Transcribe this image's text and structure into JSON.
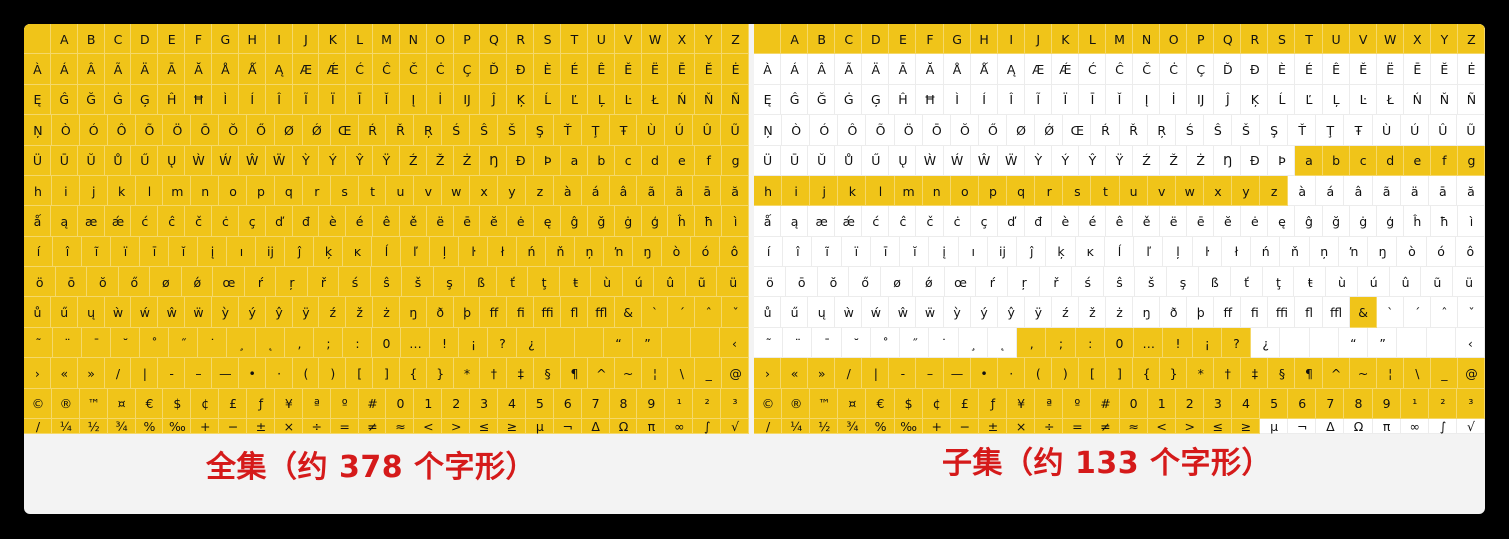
{
  "glyph_rows": [
    [
      "",
      "A",
      "B",
      "C",
      "D",
      "E",
      "F",
      "G",
      "H",
      "I",
      "J",
      "K",
      "L",
      "M",
      "N",
      "O",
      "P",
      "Q",
      "R",
      "S",
      "T",
      "U",
      "V",
      "W",
      "X",
      "Y",
      "Z"
    ],
    [
      "À",
      "Á",
      "Â",
      "Ã",
      "Ä",
      "Ā",
      "Ă",
      "Å",
      "Ǻ",
      "Ą",
      "Æ",
      "Ǽ",
      "Ć",
      "Ĉ",
      "Č",
      "Ċ",
      "Ç",
      "Ď",
      "Đ",
      "È",
      "É",
      "Ê",
      "Ě",
      "Ë",
      "Ē",
      "Ĕ",
      "Ė"
    ],
    [
      "Ę",
      "Ĝ",
      "Ğ",
      "Ġ",
      "Ģ",
      "Ĥ",
      "Ħ",
      "Ì",
      "Í",
      "Î",
      "Ĩ",
      "Ï",
      "Ī",
      "Ĭ",
      "Į",
      "İ",
      "Ĳ",
      "Ĵ",
      "Ķ",
      "Ĺ",
      "Ľ",
      "Ļ",
      "Ŀ",
      "Ł",
      "Ń",
      "Ň",
      "Ñ"
    ],
    [
      "Ņ",
      "Ò",
      "Ó",
      "Ô",
      "Õ",
      "Ö",
      "Ō",
      "Ŏ",
      "Ő",
      "Ø",
      "Ǿ",
      "Œ",
      "Ŕ",
      "Ř",
      "Ŗ",
      "Ś",
      "Ŝ",
      "Š",
      "Ş",
      "Ť",
      "Ţ",
      "Ŧ",
      "Ù",
      "Ú",
      "Û",
      "Ũ"
    ],
    [
      "Ü",
      "Ū",
      "Ŭ",
      "Ů",
      "Ű",
      "Ų",
      "Ẁ",
      "Ẃ",
      "Ŵ",
      "Ẅ",
      "Ỳ",
      "Ý",
      "Ŷ",
      "Ÿ",
      "Ź",
      "Ž",
      "Ż",
      "Ŋ",
      "Ð",
      "Þ",
      "a",
      "b",
      "c",
      "d",
      "e",
      "f",
      "g"
    ],
    [
      "h",
      "i",
      "j",
      "k",
      "l",
      "m",
      "n",
      "o",
      "p",
      "q",
      "r",
      "s",
      "t",
      "u",
      "v",
      "w",
      "x",
      "y",
      "z",
      "à",
      "á",
      "â",
      "ã",
      "ä",
      "ā",
      "ă"
    ],
    [
      "ǻ",
      "ą",
      "æ",
      "ǽ",
      "ć",
      "ĉ",
      "č",
      "ċ",
      "ç",
      "ď",
      "đ",
      "è",
      "é",
      "ê",
      "ě",
      "ë",
      "ē",
      "ĕ",
      "ė",
      "ę",
      "ĝ",
      "ğ",
      "ġ",
      "ģ",
      "ĥ",
      "ħ",
      "ì"
    ],
    [
      "í",
      "î",
      "ĩ",
      "ï",
      "ī",
      "ĭ",
      "į",
      "ı",
      "ĳ",
      "ĵ",
      "ķ",
      "ĸ",
      "ĺ",
      "ľ",
      "ļ",
      "ŀ",
      "ł",
      "ń",
      "ň",
      "ņ",
      "ŉ",
      "ŋ",
      "ò",
      "ó",
      "ô"
    ],
    [
      "ö",
      "ō",
      "ŏ",
      "ő",
      "ø",
      "ǿ",
      "œ",
      "ŕ",
      "ŗ",
      "ř",
      "ś",
      "ŝ",
      "š",
      "ş",
      "ß",
      "ť",
      "ţ",
      "ŧ",
      "ù",
      "ú",
      "û",
      "ũ",
      "ü"
    ],
    [
      "ů",
      "ű",
      "ų",
      "ẁ",
      "ẃ",
      "ŵ",
      "ẅ",
      "ỳ",
      "ý",
      "ŷ",
      "ÿ",
      "ź",
      "ž",
      "ż",
      "ŋ",
      "ð",
      "þ",
      "ff",
      "fi",
      "ffi",
      "fl",
      "ffl",
      "&",
      "`",
      "´",
      "ˆ",
      "ˇ"
    ],
    [
      "˜",
      "¨",
      "¯",
      "˘",
      "˚",
      "˝",
      "˙",
      "¸",
      "˛",
      ",",
      ";",
      ":",
      "0",
      "…",
      "!",
      "¡",
      "?",
      "¿",
      "",
      "",
      "“",
      "”",
      "",
      "",
      "‹"
    ],
    [
      "›",
      "«",
      "»",
      "/",
      "|",
      "-",
      "–",
      "—",
      "•",
      "·",
      "(",
      ")",
      "[",
      "]",
      "{",
      "}",
      "*",
      "†",
      "‡",
      "§",
      "¶",
      "^",
      "~",
      "¦",
      "\\",
      "_",
      "@"
    ],
    [
      "©",
      "®",
      "™",
      "¤",
      "€",
      "$",
      "¢",
      "£",
      "ƒ",
      "¥",
      "ª",
      "º",
      "#",
      "0",
      "1",
      "2",
      "3",
      "4",
      "5",
      "6",
      "7",
      "8",
      "9",
      "¹",
      "²",
      "³"
    ],
    [
      "/",
      "¼",
      "½",
      "¾",
      "%",
      "‰",
      "+",
      "−",
      "±",
      "×",
      "÷",
      "=",
      "≠",
      "≈",
      "<",
      ">",
      "≤",
      "≥",
      "µ",
      "¬",
      "Δ",
      "Ω",
      "π",
      "∞",
      "∫",
      "√"
    ]
  ],
  "subset_highlight": {
    "0": [
      0,
      26
    ],
    "4": [
      20,
      26
    ],
    "5": [
      0,
      18
    ],
    "9": [
      22,
      22
    ],
    "10": [
      9,
      16
    ],
    "11": [
      0,
      26
    ],
    "12": [
      0,
      26
    ],
    "13": [
      0,
      17
    ]
  },
  "caption_full": "全集（约 378 个字形）",
  "caption_subset": "子集（约 133 个字形）",
  "colors": {
    "highlight": "#f0c419",
    "caption": "#d51a1a"
  }
}
